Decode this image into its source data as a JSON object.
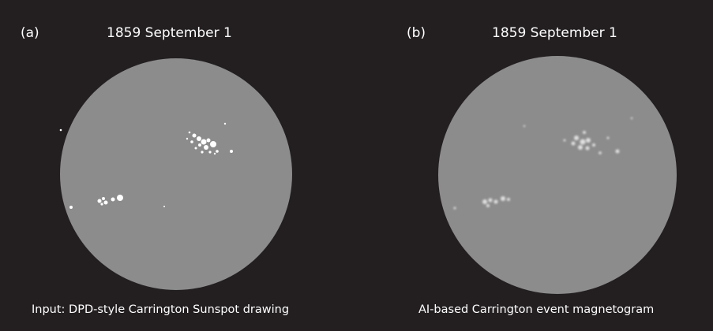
{
  "panels": [
    {
      "label": "(a)",
      "date": "1859 September 1",
      "caption": "Input: DPD-style Carrington Sunspot drawing"
    },
    {
      "label": "(b)",
      "date": "1859 September 1",
      "caption": "AI-based Carrington event magnetogram"
    }
  ]
}
